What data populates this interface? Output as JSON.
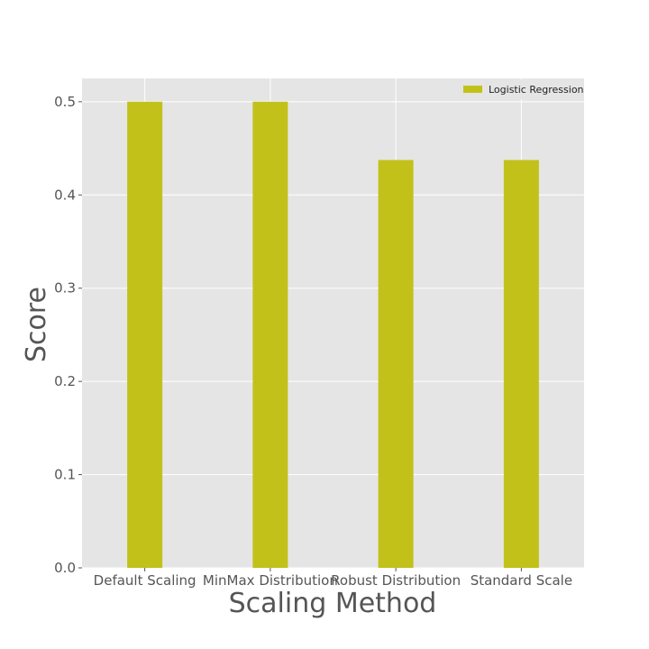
{
  "chart_data": {
    "type": "bar",
    "title": "",
    "xlabel": "Scaling Method",
    "ylabel": "Score",
    "categories": [
      "Default Scaling",
      "MinMax Distribution",
      "Robust Distribution",
      "Standard Scale"
    ],
    "series": [
      {
        "name": "Logistic Regression",
        "values": [
          0.5,
          0.5,
          0.4375,
          0.4375
        ],
        "color": "#c2c11a"
      }
    ],
    "ylim": [
      0,
      0.525
    ],
    "yticks": [
      0.0,
      0.1,
      0.2,
      0.3,
      0.4,
      0.5
    ],
    "ytick_labels": [
      "0.0",
      "0.1",
      "0.2",
      "0.3",
      "0.4",
      "0.5"
    ],
    "grid": true,
    "legend_position": "top-right",
    "background_color": "#e5e5e5",
    "grid_color": "#ffffff",
    "text_color": "#555555"
  }
}
